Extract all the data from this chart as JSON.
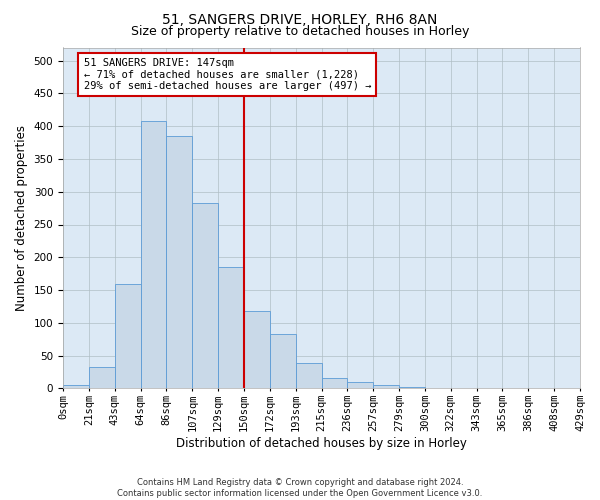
{
  "title_line1": "51, SANGERS DRIVE, HORLEY, RH6 8AN",
  "title_line2": "Size of property relative to detached houses in Horley",
  "xlabel": "Distribution of detached houses by size in Horley",
  "ylabel": "Number of detached properties",
  "footnote1": "Contains HM Land Registry data © Crown copyright and database right 2024.",
  "footnote2": "Contains public sector information licensed under the Open Government Licence v3.0.",
  "bin_labels": [
    "0sqm",
    "21sqm",
    "43sqm",
    "64sqm",
    "86sqm",
    "107sqm",
    "129sqm",
    "150sqm",
    "172sqm",
    "193sqm",
    "215sqm",
    "236sqm",
    "257sqm",
    "279sqm",
    "300sqm",
    "322sqm",
    "343sqm",
    "365sqm",
    "386sqm",
    "408sqm",
    "429sqm"
  ],
  "bar_heights": [
    5,
    33,
    160,
    408,
    385,
    283,
    185,
    118,
    83,
    38,
    16,
    10,
    5,
    2,
    1,
    0,
    0,
    0,
    0,
    0
  ],
  "bar_color": "#c9d9e8",
  "bar_edge_color": "#5b9bd5",
  "grid_color": "#b0bec5",
  "vline_x_index": 7,
  "vline_color": "#cc0000",
  "annotation_text": "51 SANGERS DRIVE: 147sqm\n← 71% of detached houses are smaller (1,228)\n29% of semi-detached houses are larger (497) →",
  "annotation_box_color": "#ffffff",
  "annotation_box_edge_color": "#cc0000",
  "ylim": [
    0,
    520
  ],
  "yticks": [
    0,
    50,
    100,
    150,
    200,
    250,
    300,
    350,
    400,
    450,
    500
  ],
  "plot_bg_color": "#dce9f5",
  "background_color": "#ffffff",
  "title_fontsize": 10,
  "subtitle_fontsize": 9,
  "axis_label_fontsize": 8.5,
  "tick_fontsize": 7.5,
  "annotation_fontsize": 7.5,
  "footnote_fontsize": 6
}
